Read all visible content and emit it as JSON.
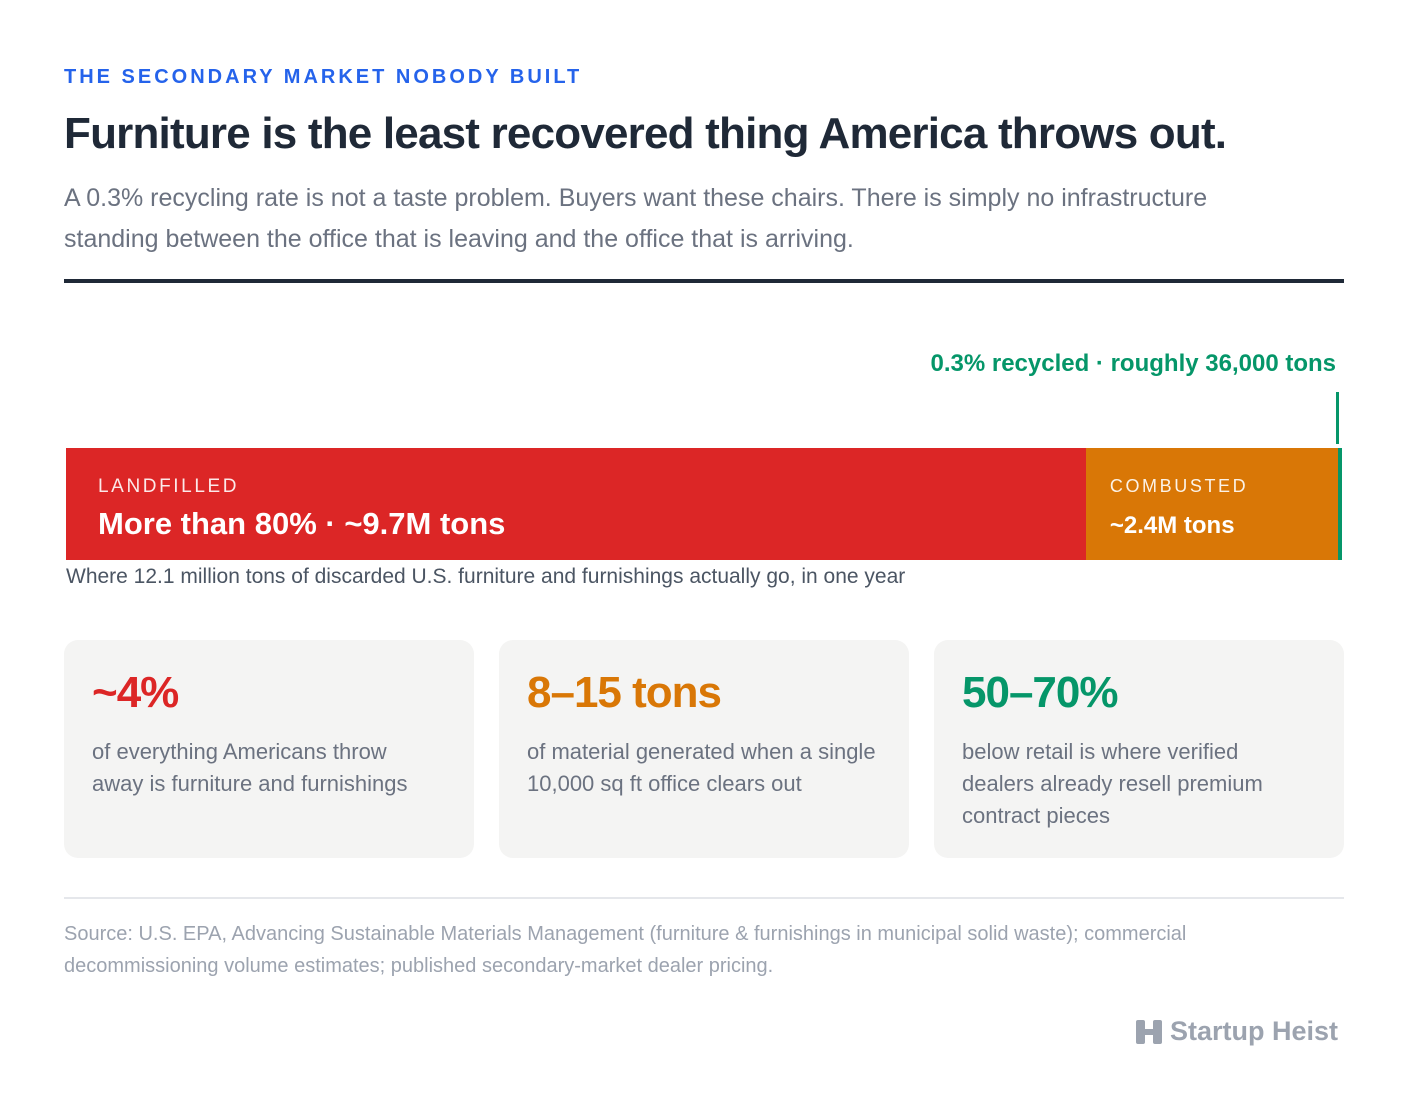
{
  "eyebrow": "THE SECONDARY MARKET NOBODY BUILT",
  "title": "Furniture is the least recovered thing America throws out.",
  "subtitle": "A 0.3% recycling rate is not a taste problem. Buyers want these chairs. There is simply no infrastructure standing between the office that is leaving and the office that is arriving.",
  "colors": {
    "accent": "#2563eb",
    "landfilled": "#dc2626",
    "combusted": "#d97706",
    "recycled": "#059669",
    "ink": "#1f2937",
    "muted": "#6b7280",
    "card_bg": "#f4f4f3"
  },
  "chart_data": {
    "type": "bar",
    "orientation": "horizontal-stacked",
    "total_label": "12.1 million tons",
    "series": [
      {
        "name": "LANDFILLED",
        "value_tons_millions": 9.7,
        "label": "More than 80% · ~9.7M tons",
        "color": "#dc2626"
      },
      {
        "name": "COMBUSTED",
        "value_tons_millions": 2.4,
        "label": "~2.4M tons",
        "color": "#d97706"
      },
      {
        "name": "recycled",
        "value_tons_millions": 0.036,
        "label": "0.3% recycled · roughly 36,000 tons",
        "color": "#059669"
      }
    ],
    "caption": "Where 12.1 million tons of discarded U.S. furniture and furnishings actually go, in one year"
  },
  "stats": [
    {
      "big": "~4%",
      "color": "#dc2626",
      "text": "of everything Americans throw away is furniture and furnishings"
    },
    {
      "big": "8–15 tons",
      "color": "#d97706",
      "text": "of material generated when a single 10,000 sq ft office clears out"
    },
    {
      "big": "50–70%",
      "color": "#059669",
      "text": "below retail is where verified dealers already resell premium contract pieces"
    }
  ],
  "source": "Source: U.S. EPA, Advancing Sustainable Materials Management (furniture & furnishings in municipal solid waste); commercial decommissioning volume estimates; published secondary-market dealer pricing.",
  "brand": {
    "name": "Startup Heist",
    "icon": "startup-heist-logo-icon"
  }
}
